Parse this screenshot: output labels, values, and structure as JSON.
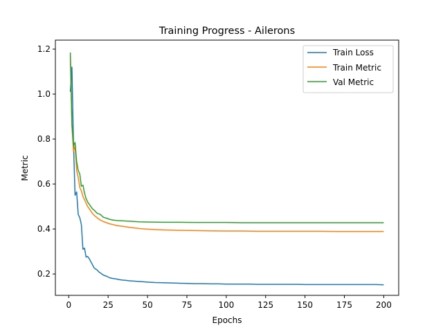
{
  "chart_data": {
    "type": "line",
    "title": "Training Progress - Ailerons",
    "xlabel": "Epochs",
    "ylabel": "Metric",
    "xlim": [
      -8.5,
      209.5
    ],
    "ylim": [
      0.105,
      1.24
    ],
    "xticks": [
      0,
      25,
      50,
      75,
      100,
      125,
      150,
      175,
      200
    ],
    "yticks": [
      0.2,
      0.4,
      0.6,
      0.8,
      1.0,
      1.2
    ],
    "ytick_labels": [
      "0.2",
      "0.4",
      "0.6",
      "0.8",
      "1.0",
      "1.2"
    ],
    "grid": false,
    "legend_position": "upper-right",
    "series": [
      {
        "name": "Train Loss",
        "color": "#1f77b4",
        "x": [
          1,
          2,
          3,
          4,
          5,
          6,
          7,
          8,
          9,
          10,
          11,
          12,
          13,
          14,
          15,
          16,
          17,
          18,
          19,
          20,
          22,
          24,
          26,
          28,
          30,
          32,
          34,
          36,
          38,
          40,
          42,
          44,
          46,
          48,
          50,
          55,
          60,
          65,
          70,
          75,
          80,
          85,
          90,
          95,
          100,
          105,
          110,
          115,
          120,
          125,
          130,
          135,
          140,
          145,
          150,
          155,
          160,
          165,
          170,
          175,
          180,
          185,
          190,
          195,
          200
        ],
        "y": [
          1.01,
          1.12,
          0.78,
          0.55,
          0.565,
          0.465,
          0.45,
          0.42,
          0.31,
          0.315,
          0.275,
          0.278,
          0.268,
          0.255,
          0.242,
          0.228,
          0.222,
          0.218,
          0.21,
          0.205,
          0.195,
          0.19,
          0.183,
          0.18,
          0.178,
          0.175,
          0.173,
          0.172,
          0.17,
          0.169,
          0.168,
          0.167,
          0.166,
          0.165,
          0.164,
          0.162,
          0.161,
          0.16,
          0.159,
          0.158,
          0.157,
          0.157,
          0.156,
          0.156,
          0.155,
          0.155,
          0.155,
          0.155,
          0.154,
          0.154,
          0.154,
          0.154,
          0.154,
          0.154,
          0.153,
          0.153,
          0.153,
          0.153,
          0.153,
          0.153,
          0.153,
          0.153,
          0.153,
          0.153,
          0.152
        ]
      },
      {
        "name": "Train Metric",
        "color": "#ff7f0e",
        "x": [
          1,
          2,
          3,
          4,
          5,
          6,
          7,
          8,
          9,
          10,
          11,
          12,
          13,
          14,
          15,
          16,
          18,
          20,
          22,
          24,
          26,
          28,
          30,
          35,
          40,
          45,
          50,
          60,
          70,
          80,
          90,
          100,
          110,
          120,
          130,
          140,
          150,
          160,
          170,
          180,
          190,
          200
        ],
        "y": [
          1.17,
          0.86,
          0.745,
          0.77,
          0.66,
          0.63,
          0.585,
          0.57,
          0.545,
          0.53,
          0.515,
          0.5,
          0.49,
          0.48,
          0.47,
          0.462,
          0.45,
          0.44,
          0.433,
          0.428,
          0.423,
          0.42,
          0.416,
          0.411,
          0.406,
          0.402,
          0.399,
          0.396,
          0.394,
          0.393,
          0.392,
          0.391,
          0.391,
          0.39,
          0.39,
          0.39,
          0.39,
          0.39,
          0.389,
          0.389,
          0.389,
          0.389
        ]
      },
      {
        "name": "Val Metric",
        "color": "#2ca02c",
        "x": [
          1,
          2,
          3,
          4,
          5,
          6,
          7,
          8,
          9,
          10,
          11,
          12,
          13,
          14,
          15,
          16,
          18,
          20,
          22,
          24,
          26,
          28,
          30,
          35,
          40,
          45,
          50,
          60,
          70,
          80,
          90,
          100,
          110,
          120,
          130,
          140,
          150,
          160,
          170,
          180,
          190,
          200
        ],
        "y": [
          1.185,
          0.87,
          0.77,
          0.785,
          0.7,
          0.66,
          0.645,
          0.59,
          0.595,
          0.56,
          0.535,
          0.52,
          0.51,
          0.5,
          0.49,
          0.485,
          0.47,
          0.465,
          0.452,
          0.448,
          0.443,
          0.44,
          0.438,
          0.436,
          0.434,
          0.432,
          0.431,
          0.43,
          0.43,
          0.429,
          0.429,
          0.429,
          0.428,
          0.428,
          0.428,
          0.428,
          0.428,
          0.428,
          0.428,
          0.428,
          0.428,
          0.428
        ]
      }
    ]
  }
}
